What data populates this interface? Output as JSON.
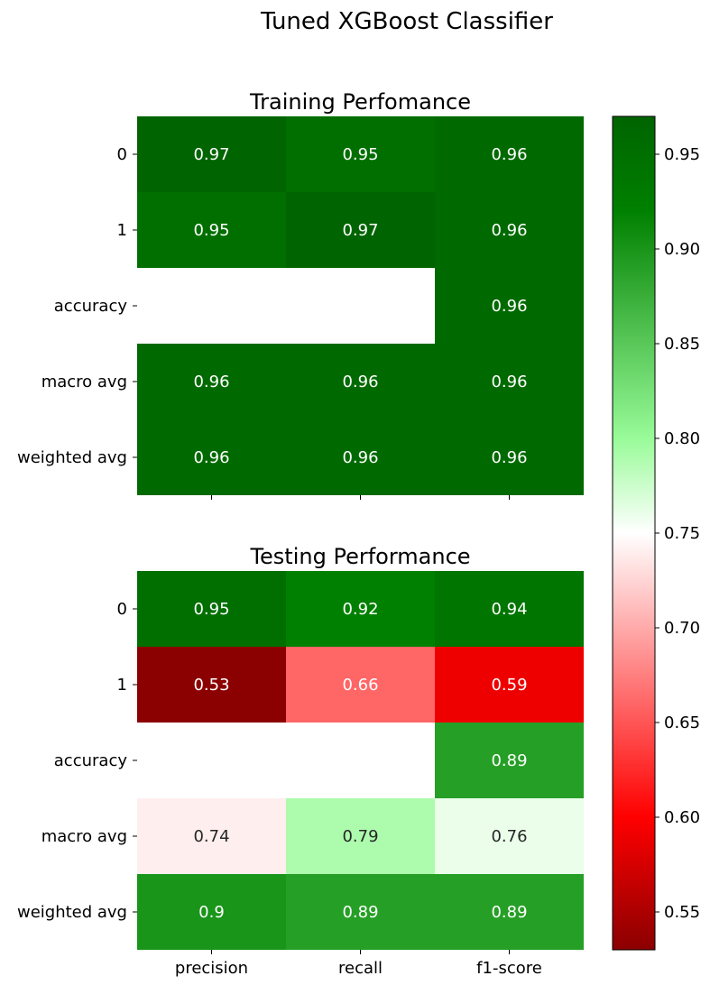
{
  "chart_data": {
    "type": "heatmap",
    "suptitle": "Tuned XGBoost Classifier",
    "columns": [
      "precision",
      "recall",
      "f1-score"
    ],
    "rows": [
      "0",
      "1",
      "accuracy",
      "macro avg",
      "weighted avg"
    ],
    "colormap": {
      "stops": [
        {
          "value": 0.53,
          "color": "#8b0000"
        },
        {
          "value": 0.6,
          "color": "#ff0000"
        },
        {
          "value": 0.75,
          "color": "#ffffff"
        },
        {
          "value": 0.8,
          "color": "#98fb98"
        },
        {
          "value": 0.92,
          "color": "#008000"
        },
        {
          "value": 0.97,
          "color": "#006400"
        }
      ],
      "vmin": 0.53,
      "vmax": 0.97,
      "ticks": [
        0.55,
        0.6,
        0.65,
        0.7,
        0.75,
        0.8,
        0.85,
        0.9,
        0.95
      ],
      "tick_labels": [
        "0.55",
        "0.60",
        "0.65",
        "0.70",
        "0.75",
        "0.80",
        "0.85",
        "0.90",
        "0.95"
      ]
    },
    "panels": [
      {
        "title": "Training Perfomance",
        "values": [
          [
            0.97,
            0.95,
            0.96
          ],
          [
            0.95,
            0.97,
            0.96
          ],
          [
            null,
            null,
            0.96
          ],
          [
            0.96,
            0.96,
            0.96
          ],
          [
            0.96,
            0.96,
            0.96
          ]
        ],
        "labels": [
          [
            "0.97",
            "0.95",
            "0.96"
          ],
          [
            "0.95",
            "0.97",
            "0.96"
          ],
          [
            "",
            "",
            "0.96"
          ],
          [
            "0.96",
            "0.96",
            "0.96"
          ],
          [
            "0.96",
            "0.96",
            "0.96"
          ]
        ]
      },
      {
        "title": "Testing Performance",
        "values": [
          [
            0.95,
            0.92,
            0.94
          ],
          [
            0.53,
            0.66,
            0.59
          ],
          [
            null,
            null,
            0.89
          ],
          [
            0.74,
            0.79,
            0.76
          ],
          [
            0.9,
            0.89,
            0.89
          ]
        ],
        "labels": [
          [
            "0.95",
            "0.92",
            "0.94"
          ],
          [
            "0.53",
            "0.66",
            "0.59"
          ],
          [
            "",
            "",
            "0.89"
          ],
          [
            "0.74",
            "0.79",
            "0.76"
          ],
          [
            "0.9",
            "0.89",
            "0.89"
          ]
        ]
      }
    ]
  }
}
